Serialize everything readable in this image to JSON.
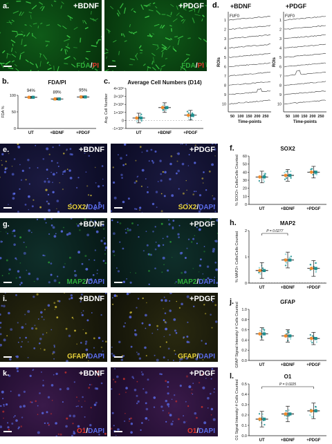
{
  "panel_a": {
    "letter": "a.",
    "left": {
      "label": "+BDNF",
      "stain_1": "FDA",
      "sep": "/",
      "stain_2": "PI"
    },
    "right": {
      "label": "+PDGF",
      "stain_1": "FDA",
      "sep": "/",
      "stain_2": "PI"
    }
  },
  "panel_b": {
    "letter": "b.",
    "chart_data": {
      "type": "scatter",
      "title": "FDA/PI",
      "ylabel": "FDA %",
      "categories": [
        "UT",
        "+BDNF",
        "+PDGF"
      ],
      "percent_labels": [
        "94%",
        "89%",
        "95%"
      ],
      "values": [
        94,
        89,
        95
      ],
      "ylim": [
        0,
        100
      ],
      "yticks": [
        "0",
        "50",
        "100"
      ]
    }
  },
  "panel_c": {
    "letter": "c.",
    "chart_data": {
      "type": "scatter",
      "title": "Average Cell Numbers (D14)",
      "ylabel": "Avg. Cell Number",
      "categories": [
        "UT",
        "+BDNF",
        "+PDGF"
      ],
      "values": [
        300000,
        1600000,
        650000
      ],
      "ylim": [
        -1000000,
        4000000
      ],
      "yticks": [
        "-1×10⁶",
        "0",
        "1×10⁶",
        "2×10⁶",
        "3×10⁶",
        "4×10⁶"
      ]
    }
  },
  "panel_d": {
    "letter": "d.",
    "left_title": "+BDNF",
    "right_title": "+PDGF",
    "trace_label": "FI/F0",
    "roi_label": "ROIs",
    "xlabel": "Time-points",
    "xticks": [
      "50",
      "100",
      "150",
      "200",
      "250"
    ],
    "roi_numbers": [
      "1",
      "2",
      "3",
      "4",
      "5",
      "6",
      "7",
      "8",
      "9",
      "10"
    ]
  },
  "row_e": {
    "letter": "e.",
    "left_label": "+BDNF",
    "right_label": "+PDGF",
    "stain_1": "SOX2",
    "sep": "/",
    "stain_2": "DAPI"
  },
  "row_g": {
    "letter": "g.",
    "left_label": "+BDNF",
    "right_label": "+PDGF",
    "stain_1": "MAP2",
    "sep": "/",
    "stain_2": "DAPI"
  },
  "row_i": {
    "letter": "i.",
    "left_label": "+BDNF",
    "right_label": "+PDGF",
    "stain_1": "GFAP",
    "sep": "/",
    "stain_2": "DAPI"
  },
  "row_k": {
    "letter": "k.",
    "left_label": "+BDNF",
    "right_label": "+PDGF",
    "stain_1": "O1",
    "sep": "/",
    "stain_2": "DAPI"
  },
  "panel_f": {
    "letter": "f.",
    "chart_data": {
      "type": "scatter",
      "title": "SOX2",
      "ylabel": "% SOX2+ Cells/Cells Counted",
      "categories": [
        "UT",
        "+BDNF",
        "+PDGF"
      ],
      "values": [
        34,
        36,
        40
      ],
      "ylim": [
        0,
        60
      ],
      "yticks": [
        "0",
        "10",
        "20",
        "30",
        "40",
        "50",
        "60"
      ]
    }
  },
  "panel_h": {
    "letter": "h.",
    "chart_data": {
      "type": "scatter",
      "title": "MAP2",
      "ylabel": "% MAP2+ Cells/Cells Counted",
      "categories": [
        "UT",
        "+BDNF",
        "+PDGF"
      ],
      "values": [
        0.6,
        1.1,
        0.7
      ],
      "ylim": [
        0,
        2.5
      ],
      "yticks": [
        "0",
        "1",
        "2"
      ],
      "annotation": "P = 0.0277"
    }
  },
  "panel_j": {
    "letter": "j.",
    "chart_data": {
      "type": "scatter",
      "title": "GFAP",
      "ylabel": "GFAP Signal Intensity/ # Cells Counted",
      "categories": [
        "UT",
        "+BDNF",
        "+PDGF"
      ],
      "values": [
        0.52,
        0.48,
        0.43
      ],
      "ylim": [
        0,
        1.0
      ],
      "yticks": [
        "0.0",
        "0.2",
        "0.4",
        "0.6",
        "0.8",
        "1.0"
      ]
    }
  },
  "panel_l": {
    "letter": "l.",
    "chart_data": {
      "type": "scatter",
      "title": "O1",
      "ylabel": "O1 Signal Intensity/ # Cells Counted",
      "categories": [
        "UT",
        "+BDNF",
        "+PDGF"
      ],
      "values": [
        0.16,
        0.21,
        0.24
      ],
      "ylim": [
        0,
        0.5
      ],
      "yticks": [
        "0.0",
        "0.1",
        "0.2",
        "0.3",
        "0.4",
        "0.5"
      ],
      "annotation": "P = 0.0225"
    }
  },
  "colors": {
    "fda_green": "#2fae3a",
    "pi_red": "#e0352c",
    "sox2_yellow": "#e8d23a",
    "map2_green": "#2fae3a",
    "gfap_yellow": "#e8d23a",
    "o1_red": "#e0352c",
    "dapi_blue": "#5a6be8",
    "orange_dot": "#f08c2e",
    "teal_dot": "#1f8f8f",
    "light_dot": "#8fd3d3"
  }
}
